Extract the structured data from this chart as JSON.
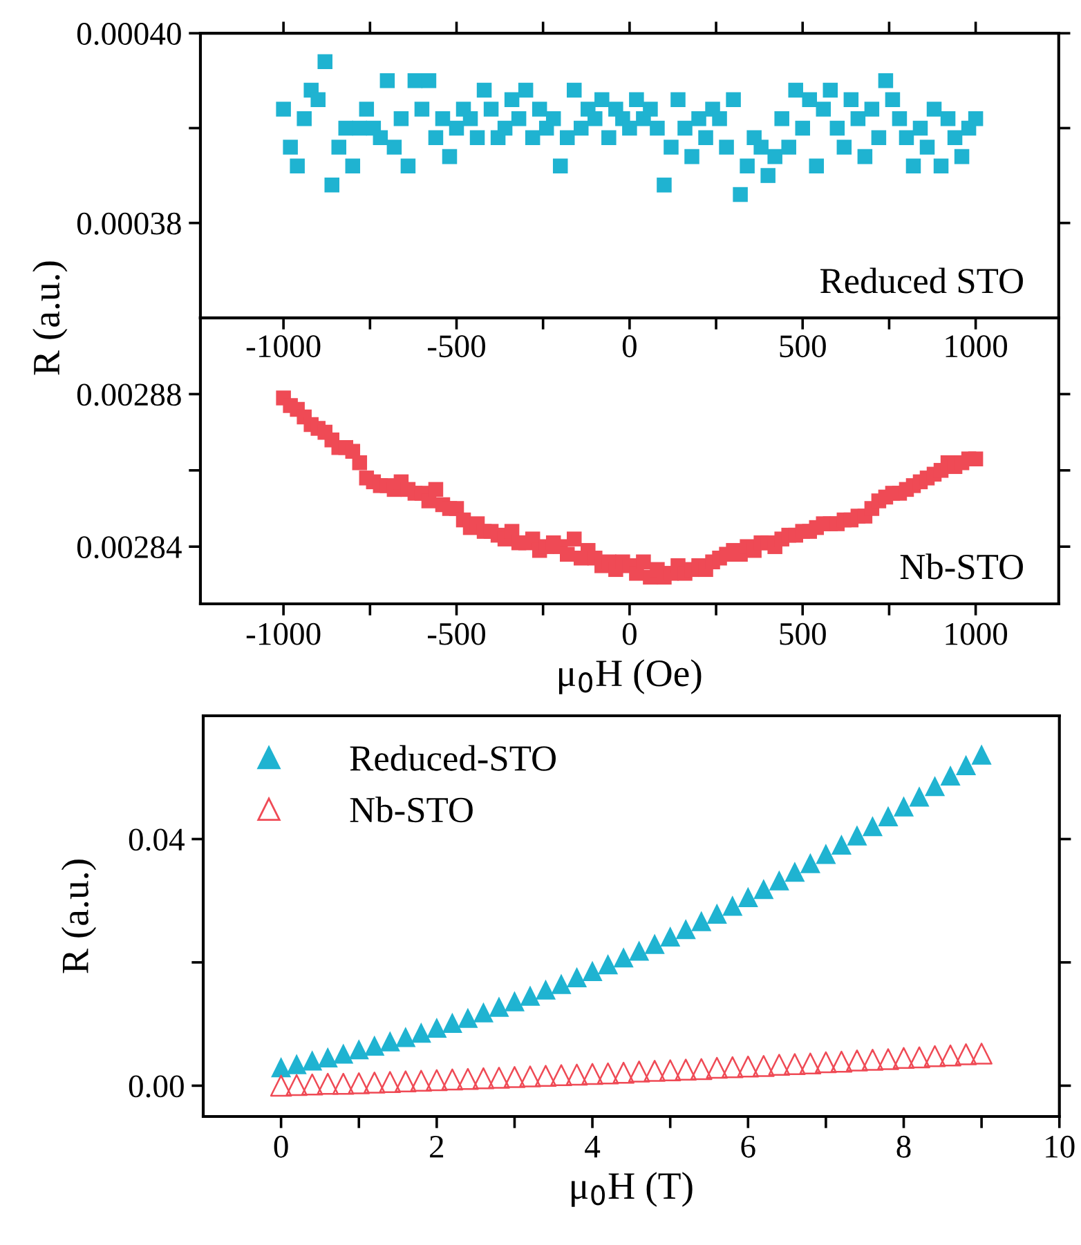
{
  "chart_data": [
    {
      "type": "scatter",
      "ylabel": "R (a.u.)",
      "annotations": [
        "Reduced STO"
      ],
      "marker": "square",
      "legend": false,
      "grid": false,
      "tick_labels": "y",
      "xlim": [
        -1240,
        1240
      ],
      "xticks": [
        {
          "value": -1000,
          "label": null
        },
        {
          "value": -750,
          "label": null
        },
        {
          "value": -500,
          "label": null
        },
        {
          "value": -250,
          "label": null
        },
        {
          "value": 0,
          "label": null
        },
        {
          "value": 250,
          "label": null
        },
        {
          "value": 500,
          "label": null
        },
        {
          "value": 750,
          "label": null
        },
        {
          "value": 1000,
          "label": null
        }
      ],
      "ylim": [
        0.00037,
        0.0004
      ],
      "yticks": [
        {
          "value": 0.00038,
          "label": "0.00038"
        },
        {
          "value": 0.00039,
          "label": null
        },
        {
          "value": 0.0004,
          "label": "0.00040"
        }
      ],
      "series": [
        {
          "color": "#1fb3d1",
          "x": [
            -1000,
            -980,
            -960,
            -940,
            -920,
            -900,
            -880,
            -860,
            -840,
            -820,
            -800,
            -780,
            -760,
            -740,
            -720,
            -700,
            -680,
            -660,
            -640,
            -620,
            -600,
            -580,
            -560,
            -540,
            -520,
            -500,
            -480,
            -460,
            -440,
            -420,
            -400,
            -380,
            -360,
            -340,
            -320,
            -300,
            -280,
            -260,
            -240,
            -220,
            -200,
            -180,
            -160,
            -140,
            -120,
            -100,
            -80,
            -60,
            -40,
            -20,
            0,
            20,
            40,
            60,
            80,
            100,
            120,
            140,
            160,
            180,
            200,
            220,
            240,
            260,
            280,
            300,
            320,
            340,
            360,
            380,
            400,
            420,
            440,
            460,
            480,
            500,
            520,
            540,
            560,
            580,
            600,
            620,
            640,
            660,
            680,
            700,
            720,
            740,
            760,
            780,
            800,
            820,
            840,
            860,
            880,
            900,
            920,
            940,
            960,
            980,
            1000
          ],
          "values": [
            0.000392,
            0.000388,
            0.000386,
            0.000391,
            0.000394,
            0.000393,
            0.000397,
            0.000384,
            0.000388,
            0.00039,
            0.000386,
            0.00039,
            0.000392,
            0.00039,
            0.000389,
            0.000395,
            0.000388,
            0.000391,
            0.000386,
            0.000395,
            0.000392,
            0.000395,
            0.000389,
            0.000391,
            0.000387,
            0.00039,
            0.000392,
            0.000391,
            0.000389,
            0.000394,
            0.000392,
            0.000389,
            0.00039,
            0.000393,
            0.000391,
            0.000394,
            0.000389,
            0.000392,
            0.00039,
            0.000391,
            0.000386,
            0.000389,
            0.000394,
            0.00039,
            0.000392,
            0.000391,
            0.000393,
            0.000389,
            0.000392,
            0.000391,
            0.00039,
            0.000393,
            0.000391,
            0.000392,
            0.00039,
            0.000384,
            0.000388,
            0.000393,
            0.00039,
            0.000387,
            0.000391,
            0.000389,
            0.000392,
            0.000391,
            0.000388,
            0.000393,
            0.000383,
            0.000386,
            0.000389,
            0.000388,
            0.000385,
            0.000387,
            0.000391,
            0.000388,
            0.000394,
            0.00039,
            0.000393,
            0.000386,
            0.000392,
            0.000394,
            0.00039,
            0.000388,
            0.000393,
            0.000391,
            0.000387,
            0.000392,
            0.000389,
            0.000395,
            0.000393,
            0.000391,
            0.000389,
            0.000386,
            0.00039,
            0.000388,
            0.000392,
            0.000386,
            0.000391,
            0.000389,
            0.000387,
            0.00039,
            0.000391
          ]
        }
      ]
    },
    {
      "type": "scatter",
      "xlabel": "μ$_{0}$H (Oe)",
      "annotations": [
        "Nb-STO"
      ],
      "marker": "square",
      "legend": false,
      "grid": false,
      "xlim": [
        -1240,
        1240
      ],
      "xticks": [
        -1000,
        {
          "value": -750,
          "label": null
        },
        -500,
        {
          "value": -250,
          "label": null
        },
        0,
        {
          "value": 250,
          "label": null
        },
        500,
        {
          "value": 750,
          "label": null
        },
        1000
      ],
      "x2lim": [
        -1240,
        1240
      ],
      "x2ticks": [
        -1000,
        {
          "value": -750,
          "label": null
        },
        -500,
        {
          "value": -250,
          "label": null
        },
        0,
        {
          "value": 250,
          "label": null
        },
        500,
        {
          "value": 750,
          "label": null
        },
        1000
      ],
      "ylim": [
        0.002825,
        0.0029
      ],
      "yticks": [
        {
          "value": 0.00284,
          "label": "0.00284"
        },
        {
          "value": 0.00286,
          "label": null
        },
        {
          "value": 0.00288,
          "label": "0.00288"
        }
      ],
      "series": [
        {
          "color": "#ef4a55",
          "x": [
            -1000,
            -980,
            -960,
            -940,
            -920,
            -900,
            -880,
            -860,
            -840,
            -820,
            -800,
            -780,
            -760,
            -740,
            -720,
            -700,
            -680,
            -660,
            -640,
            -620,
            -600,
            -580,
            -560,
            -540,
            -520,
            -500,
            -480,
            -460,
            -440,
            -420,
            -400,
            -380,
            -360,
            -340,
            -320,
            -300,
            -280,
            -260,
            -240,
            -220,
            -200,
            -180,
            -160,
            -140,
            -120,
            -100,
            -80,
            -60,
            -40,
            -20,
            0,
            20,
            40,
            60,
            80,
            100,
            120,
            140,
            160,
            180,
            200,
            220,
            240,
            260,
            280,
            300,
            320,
            340,
            360,
            380,
            400,
            420,
            440,
            460,
            480,
            500,
            520,
            540,
            560,
            580,
            600,
            620,
            640,
            660,
            680,
            700,
            720,
            740,
            760,
            780,
            800,
            820,
            840,
            860,
            880,
            900,
            920,
            940,
            960,
            980,
            1000
          ],
          "values": [
            0.002879,
            0.002877,
            0.002876,
            0.002874,
            0.002872,
            0.002871,
            0.00287,
            0.002868,
            0.002866,
            0.002866,
            0.002865,
            0.002862,
            0.002858,
            0.002857,
            0.002856,
            0.002856,
            0.002855,
            0.002857,
            0.002855,
            0.002854,
            0.002854,
            0.002852,
            0.002855,
            0.002851,
            0.00285,
            0.00285,
            0.002847,
            0.002845,
            0.002846,
            0.002844,
            0.002844,
            0.002843,
            0.002842,
            0.002844,
            0.002841,
            0.002841,
            0.002842,
            0.002839,
            0.00284,
            0.002841,
            0.00284,
            0.002838,
            0.002842,
            0.002837,
            0.002839,
            0.002837,
            0.002835,
            0.002836,
            0.002834,
            0.002836,
            0.002835,
            0.002833,
            0.002836,
            0.002832,
            0.002834,
            0.002832,
            0.002833,
            0.002835,
            0.002833,
            0.002834,
            0.002835,
            0.002834,
            0.002836,
            0.002837,
            0.002838,
            0.002839,
            0.002838,
            0.00284,
            0.002839,
            0.002841,
            0.002841,
            0.00284,
            0.002842,
            0.002843,
            0.002843,
            0.002844,
            0.002844,
            0.002845,
            0.002846,
            0.002846,
            0.002846,
            0.002847,
            0.002847,
            0.002848,
            0.002848,
            0.00285,
            0.002852,
            0.002853,
            0.002854,
            0.002854,
            0.002855,
            0.002856,
            0.002857,
            0.002858,
            0.002859,
            0.00286,
            0.002862,
            0.002861,
            0.002862,
            0.002863,
            0.002863
          ]
        }
      ]
    },
    {
      "type": "scatter",
      "xlabel": "μ$_{0}$H (T)",
      "ylabel": "R (a.u.)",
      "marker": "triangle",
      "legend": "top left",
      "grid": false,
      "xlim": [
        -1,
        10
      ],
      "xticks": [
        0,
        {
          "value": 1,
          "label": null
        },
        2,
        {
          "value": 3,
          "label": null
        },
        4,
        {
          "value": 5,
          "label": null
        },
        6,
        {
          "value": 7,
          "label": null
        },
        8,
        {
          "value": 9,
          "label": null
        },
        10
      ],
      "ylim": [
        -0.005,
        0.06
      ],
      "yticks": [
        {
          "value": 0,
          "label": "0.00"
        },
        {
          "value": 0.02,
          "label": null
        },
        {
          "value": 0.04,
          "label": "0.04"
        }
      ],
      "series": [
        {
          "name": "Reduced-STO",
          "color": "#1fb3d1",
          "x": [
            0,
            0.2,
            0.4,
            0.6,
            0.8,
            1,
            1.2,
            1.4,
            1.6,
            1.8,
            2,
            2.2,
            2.4,
            2.6,
            2.8,
            3,
            3.2,
            3.4,
            3.6,
            3.8,
            4,
            4.2,
            4.4,
            4.6,
            4.8,
            5,
            5.2,
            5.4,
            5.6,
            5.8,
            6,
            6.2,
            6.4,
            6.6,
            6.8,
            7,
            7.2,
            7.4,
            7.6,
            7.8,
            8,
            8.2,
            8.4,
            8.6,
            8.8,
            9
          ],
          "values": [
            0.003,
            0.0035,
            0.0041,
            0.0046,
            0.0052,
            0.0059,
            0.0065,
            0.0072,
            0.0079,
            0.0086,
            0.0094,
            0.0102,
            0.011,
            0.0119,
            0.0128,
            0.0137,
            0.0146,
            0.0156,
            0.0165,
            0.0176,
            0.0186,
            0.0197,
            0.0208,
            0.0219,
            0.023,
            0.0242,
            0.0254,
            0.0267,
            0.0279,
            0.0292,
            0.0306,
            0.0319,
            0.0333,
            0.0347,
            0.0361,
            0.0376,
            0.0391,
            0.0406,
            0.0421,
            0.0437,
            0.0453,
            0.0469,
            0.0486,
            0.0503,
            0.052,
            0.0537
          ]
        },
        {
          "name": "Nb-STO",
          "color": "#ef4a55",
          "x": [
            0,
            0.2,
            0.4,
            0.6,
            0.8,
            1,
            1.2,
            1.4,
            1.6,
            1.8,
            2,
            2.2,
            2.4,
            2.6,
            2.8,
            3,
            3.2,
            3.4,
            3.6,
            3.8,
            4,
            4.2,
            4.4,
            4.6,
            4.8,
            5,
            5.2,
            5.4,
            5.6,
            5.8,
            6,
            6.2,
            6.4,
            6.6,
            6.8,
            7,
            7.2,
            7.4,
            7.6,
            7.8,
            8,
            8.2,
            8.4,
            8.6,
            8.8,
            9
          ],
          "values": [
            0,
            0.0001,
            0.0002,
            0.0003,
            0.0003,
            0.0004,
            0.0005,
            0.0006,
            0.0007,
            0.0008,
            0.0009,
            0.001,
            0.0011,
            0.0012,
            0.0013,
            0.0014,
            0.0015,
            0.0016,
            0.0017,
            0.0018,
            0.0019,
            0.002,
            0.0021,
            0.0023,
            0.0024,
            0.0025,
            0.0026,
            0.0027,
            0.0029,
            0.003,
            0.0031,
            0.0032,
            0.0034,
            0.0035,
            0.0036,
            0.0038,
            0.0039,
            0.0041,
            0.0042,
            0.0043,
            0.0045,
            0.0046,
            0.0048,
            0.0049,
            0.0051,
            0.0052
          ]
        }
      ]
    }
  ]
}
